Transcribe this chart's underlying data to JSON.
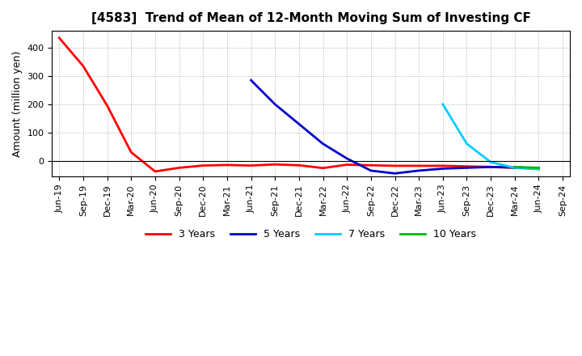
{
  "title": "[4583]  Trend of Mean of 12-Month Moving Sum of Investing CF",
  "ylabel": "Amount (million yen)",
  "ylim": [
    -55,
    460
  ],
  "yticks": [
    0,
    100,
    200,
    300,
    400
  ],
  "background_color": "#ffffff",
  "grid_color": "#b0b0b0",
  "series": {
    "3 Years": {
      "color": "#ff0000",
      "x": [
        0,
        1,
        2,
        3,
        4,
        5,
        6,
        7,
        8,
        9,
        10,
        11,
        12,
        13,
        14,
        15,
        16,
        17,
        18,
        19,
        20
      ],
      "y": [
        435,
        335,
        195,
        30,
        -38,
        -25,
        -17,
        -15,
        -17,
        -13,
        -16,
        -26,
        -14,
        -16,
        -18,
        -18,
        -18,
        -20,
        -22,
        -25,
        -28
      ]
    },
    "5 Years": {
      "color": "#0000cc",
      "x": [
        8,
        9,
        10,
        11,
        12,
        13,
        14,
        15,
        16,
        17,
        18,
        19,
        20
      ],
      "y": [
        285,
        200,
        130,
        60,
        8,
        -35,
        -45,
        -35,
        -28,
        -25,
        -22,
        -24,
        -26
      ]
    },
    "7 Years": {
      "color": "#00ccff",
      "x": [
        16,
        17,
        18,
        19,
        20
      ],
      "y": [
        200,
        60,
        -5,
        -25,
        -30
      ]
    },
    "10 Years": {
      "color": "#00bb00",
      "x": [
        19,
        20
      ],
      "y": [
        -22,
        -25
      ]
    }
  },
  "xtick_labels": [
    "Jun-19",
    "Sep-19",
    "Dec-19",
    "Mar-20",
    "Jun-20",
    "Sep-20",
    "Dec-20",
    "Mar-21",
    "Jun-21",
    "Sep-21",
    "Dec-21",
    "Mar-22",
    "Jun-22",
    "Sep-22",
    "Dec-22",
    "Mar-23",
    "Jun-23",
    "Sep-23",
    "Dec-23",
    "Mar-24",
    "Jun-24",
    "Sep-24"
  ],
  "legend_labels": [
    "3 Years",
    "5 Years",
    "7 Years",
    "10 Years"
  ],
  "legend_colors": [
    "#ff0000",
    "#0000cc",
    "#00ccff",
    "#00bb00"
  ],
  "title_fontsize": 11,
  "axis_fontsize": 8,
  "ylabel_fontsize": 9,
  "linewidth": 2.0
}
